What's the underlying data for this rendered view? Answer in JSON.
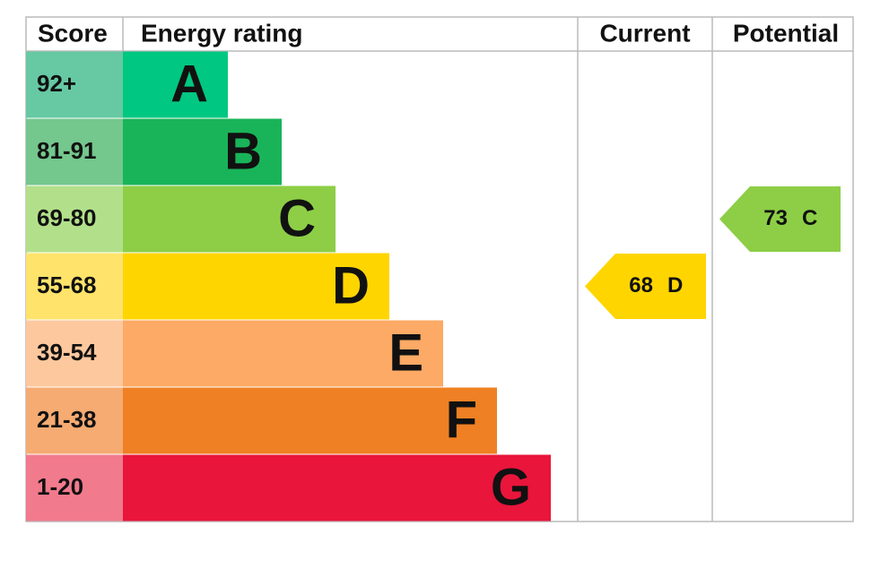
{
  "header": {
    "score": "Score",
    "energy_rating": "Energy rating",
    "current": "Current",
    "potential": "Potential"
  },
  "bands": [
    {
      "score": "92+",
      "letter": "A"
    },
    {
      "score": "81-91",
      "letter": "B"
    },
    {
      "score": "69-80",
      "letter": "C"
    },
    {
      "score": "55-68",
      "letter": "D"
    },
    {
      "score": "39-54",
      "letter": "E"
    },
    {
      "score": "21-38",
      "letter": "F"
    },
    {
      "score": "1-20",
      "letter": "G"
    }
  ],
  "current": {
    "value": 68,
    "letter": "D"
  },
  "potential": {
    "value": 73,
    "letter": "C"
  }
}
